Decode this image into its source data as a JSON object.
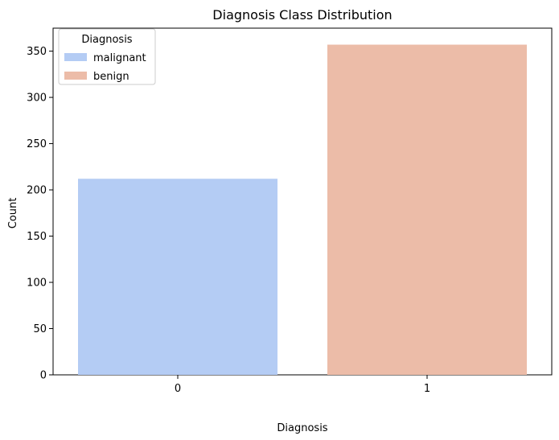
{
  "chart_data": {
    "type": "bar",
    "title": "Diagnosis Class Distribution",
    "xlabel": "Diagnosis",
    "ylabel": "Count",
    "categories": [
      "0",
      "1"
    ],
    "values": [
      212,
      357
    ],
    "colors": [
      "#b4ccf4",
      "#ecbca8"
    ],
    "ylim": [
      0,
      374.85
    ],
    "yticks": [
      0,
      50,
      100,
      150,
      200,
      250,
      300,
      350
    ],
    "grid": false,
    "legend": {
      "title": "Diagnosis",
      "placement": "top-left",
      "entries": [
        {
          "label": "malignant",
          "color": "#b4ccf4"
        },
        {
          "label": "benign",
          "color": "#ecbca8"
        }
      ]
    }
  }
}
